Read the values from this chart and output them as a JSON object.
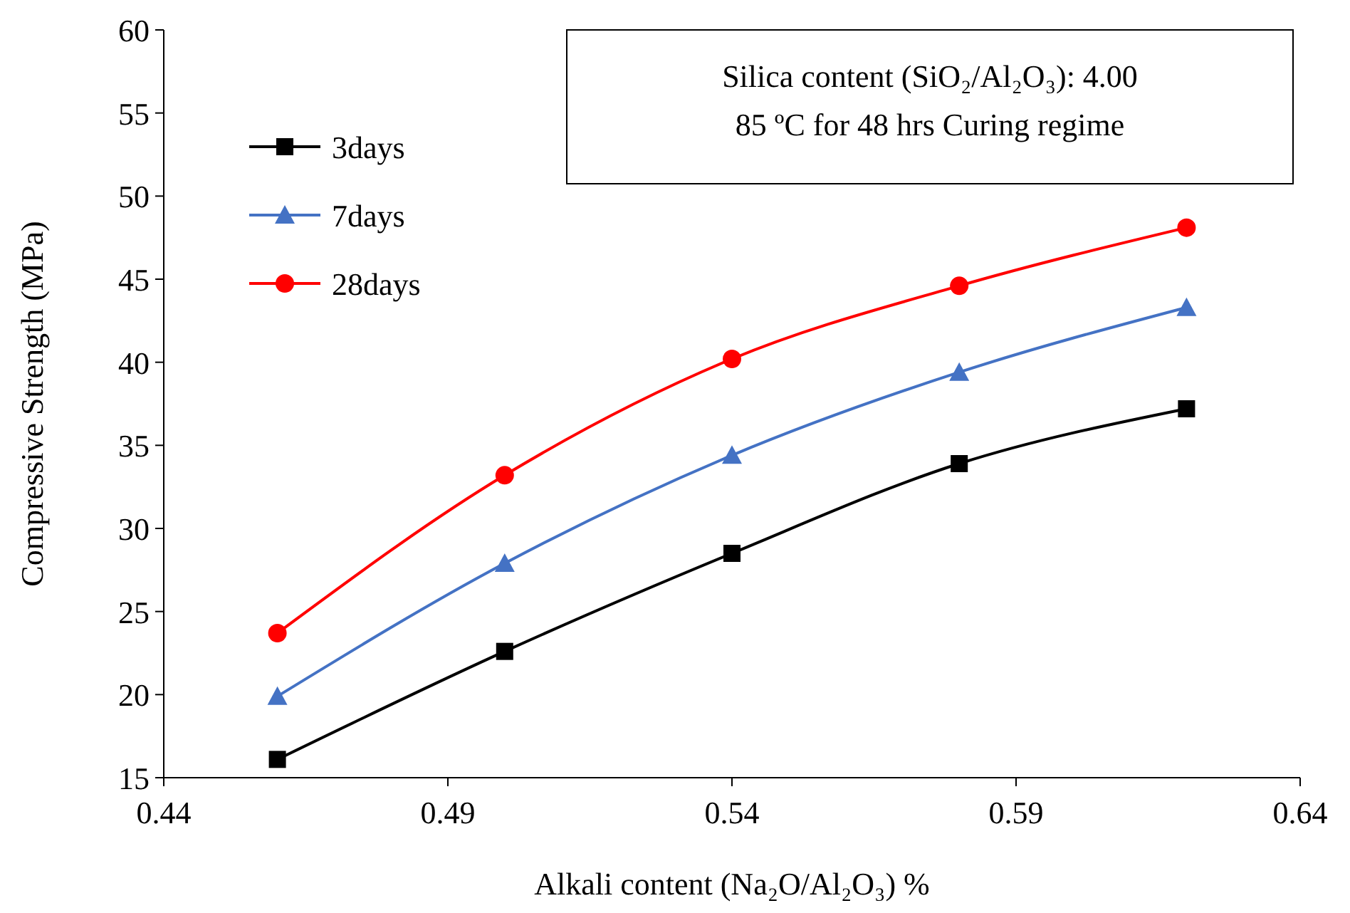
{
  "chart_data": {
    "type": "line",
    "xlabel": "Alkali content (Na₂O/Al₂O₃) %",
    "ylabel": "Compressive Strength (MPa)",
    "annotations": [
      "Silica content (SiO₂/Al₂O₃): 4.00",
      "85 ºC for 48 hrs Curing regime"
    ],
    "x": [
      0.46,
      0.5,
      0.54,
      0.58,
      0.62
    ],
    "series": [
      {
        "name": "3days",
        "color": "#000000",
        "marker": "square",
        "values": [
          16.1,
          22.6,
          28.5,
          33.9,
          37.2
        ]
      },
      {
        "name": "7days",
        "color": "#4472c4",
        "marker": "triangle",
        "values": [
          19.9,
          27.9,
          34.4,
          39.4,
          43.3
        ]
      },
      {
        "name": "28days",
        "color": "#ff0000",
        "marker": "circle",
        "values": [
          23.7,
          33.2,
          40.2,
          44.6,
          48.1
        ]
      }
    ],
    "xlim": [
      0.44,
      0.64
    ],
    "xticks": [
      {
        "value": 0.44,
        "label": "0.44"
      },
      0.49,
      0.54,
      0.59,
      0.64
    ],
    "ylim": [
      15,
      60
    ],
    "yticks": [
      15,
      20,
      25,
      30,
      35,
      40,
      45,
      50,
      55,
      60
    ],
    "legend": "top left",
    "grid": false,
    "line_style": "solid"
  }
}
